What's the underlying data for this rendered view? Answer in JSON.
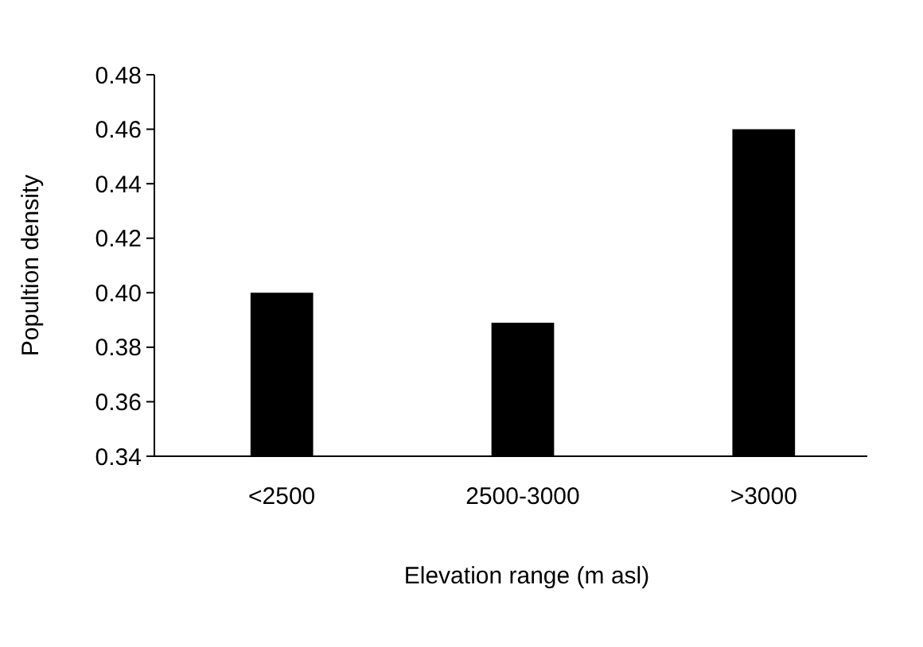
{
  "chart_data": {
    "type": "bar",
    "xlabel": "Elevation range (m asl)",
    "ylabel": "Popultion density",
    "categories": [
      "<2500",
      "2500-3000",
      ">3000"
    ],
    "values": [
      0.4,
      0.389,
      0.46
    ],
    "color": "#000000",
    "ylim": [
      0.34,
      0.48
    ],
    "yticks": [
      {
        "value": 0.34,
        "label": "0.34"
      },
      {
        "value": 0.36,
        "label": "0.36"
      },
      {
        "value": 0.38,
        "label": "0.38"
      },
      {
        "value": 0.4,
        "label": "0.40"
      },
      {
        "value": 0.42,
        "label": "0.42"
      },
      {
        "value": 0.44,
        "label": "0.44"
      },
      {
        "value": 0.46,
        "label": "0.46"
      },
      {
        "value": 0.48,
        "label": "0.48"
      }
    ],
    "grid": false
  }
}
